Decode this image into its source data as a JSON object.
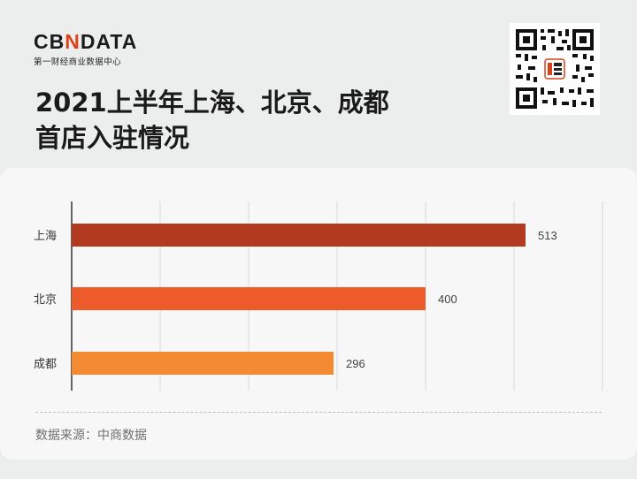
{
  "brand": {
    "logo_pre": "CB",
    "logo_accent": "N",
    "logo_post": "DATA",
    "tagline": "第一财经商业数据中心"
  },
  "title_line1": "2021上半年上海、北京、成都",
  "title_line2": "首店入驻情况",
  "source": "数据来源：中商数据",
  "colors": {
    "shanghai": "#b23a1e",
    "beijing": "#ee5b2b",
    "chengdu": "#f48b33",
    "grid": "#d9d9d9",
    "axis": "#333333"
  },
  "chart_data": {
    "type": "bar",
    "orientation": "horizontal",
    "categories": [
      "上海",
      "北京",
      "成都"
    ],
    "values": [
      513,
      400,
      296
    ],
    "xlim": [
      0,
      600
    ],
    "grid": true,
    "data_labels": true,
    "legend": "none"
  }
}
